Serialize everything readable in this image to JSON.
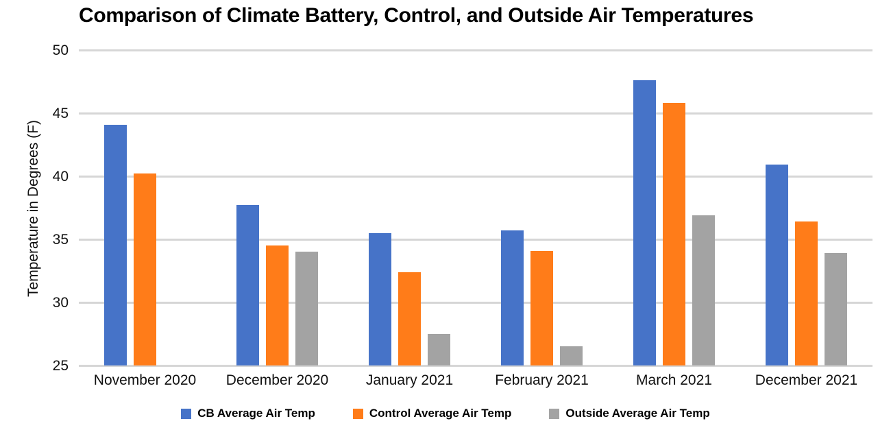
{
  "title": "Comparison of Climate Battery, Control, and Outside Air Temperatures",
  "chart_data": {
    "type": "bar",
    "title": "Comparison of Climate Battery, Control, and Outside Air Temperatures",
    "xlabel": "",
    "ylabel": "Temperature in Degrees (F)",
    "categories": [
      "November 2020",
      "December 2020",
      "January 2021",
      "February 2021",
      "March 2021",
      "December 2021"
    ],
    "series": [
      {
        "name": "CB Average Air Temp",
        "color": "#4673C8",
        "values": [
          44.1,
          37.7,
          35.5,
          35.7,
          47.6,
          40.9
        ]
      },
      {
        "name": "Control Average Air Temp",
        "color": "#FF7C19",
        "values": [
          40.2,
          34.5,
          32.4,
          34.1,
          45.8,
          36.4
        ]
      },
      {
        "name": "Outside Average Air Temp",
        "color": "#A3A3A3",
        "values": [
          null,
          34.0,
          27.5,
          26.5,
          36.9,
          33.9
        ]
      }
    ],
    "ylim": [
      25,
      50
    ],
    "yticks": [
      25,
      30,
      35,
      40,
      45,
      50
    ],
    "grid": true,
    "legend_position": "bottom",
    "colors": {
      "gridline": "#d6d6d6",
      "text": "#111111",
      "title_text": "#000000"
    }
  }
}
